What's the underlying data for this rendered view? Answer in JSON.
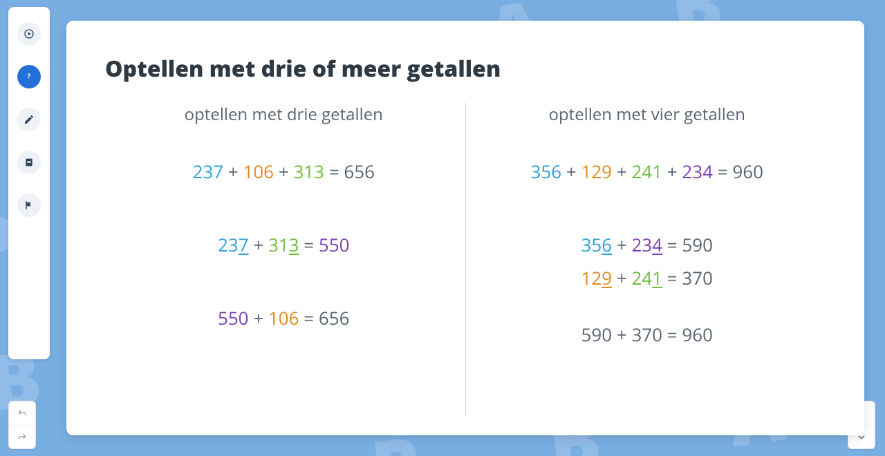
{
  "colors": {
    "text": "#5a6572",
    "heading": "#2e3944",
    "blue": "#2aa0de",
    "orange": "#e38b1f",
    "green": "#6cbf3c",
    "purple": "#7b3fb5",
    "bg": "#79aee3",
    "card": "#ffffff",
    "divider": "#c9ced5",
    "sidebar_active": "#2370d6"
  },
  "title": "Optellen met drie of meer getallen",
  "left": {
    "subhead": "optellen met drie getallen",
    "eq1": [
      {
        "t": "237",
        "c": "blue"
      },
      {
        "t": " + ",
        "c": "text"
      },
      {
        "t": "106",
        "c": "orange"
      },
      {
        "t": " + ",
        "c": "text"
      },
      {
        "t": "313",
        "c": "green"
      },
      {
        "t": " = 656",
        "c": "text"
      }
    ],
    "eq2": [
      {
        "t": "23",
        "c": "blue"
      },
      {
        "t": "7",
        "c": "blue",
        "u": true
      },
      {
        "t": " + ",
        "c": "text"
      },
      {
        "t": "31",
        "c": "green"
      },
      {
        "t": "3",
        "c": "green",
        "u": true
      },
      {
        "t": " = ",
        "c": "text"
      },
      {
        "t": "550",
        "c": "purple"
      }
    ],
    "eq3": [
      {
        "t": "550",
        "c": "purple"
      },
      {
        "t": " + ",
        "c": "text"
      },
      {
        "t": "106",
        "c": "orange"
      },
      {
        "t": " = 656",
        "c": "text"
      }
    ]
  },
  "right": {
    "subhead": "optellen met vier getallen",
    "eq1": [
      {
        "t": "356",
        "c": "blue"
      },
      {
        "t": " + ",
        "c": "text"
      },
      {
        "t": "129",
        "c": "orange"
      },
      {
        "t": " + ",
        "c": "text"
      },
      {
        "t": "241",
        "c": "green"
      },
      {
        "t": " + ",
        "c": "text"
      },
      {
        "t": "234",
        "c": "purple"
      },
      {
        "t": " = 960",
        "c": "text"
      }
    ],
    "eq2": [
      {
        "t": "35",
        "c": "blue"
      },
      {
        "t": "6",
        "c": "blue",
        "u": true
      },
      {
        "t": " + ",
        "c": "text"
      },
      {
        "t": "23",
        "c": "purple"
      },
      {
        "t": "4",
        "c": "purple",
        "u": true
      },
      {
        "t": " = 590",
        "c": "text"
      }
    ],
    "eq3": [
      {
        "t": "12",
        "c": "orange"
      },
      {
        "t": "9",
        "c": "orange",
        "u": true
      },
      {
        "t": " + ",
        "c": "text"
      },
      {
        "t": "24",
        "c": "green"
      },
      {
        "t": "1",
        "c": "green",
        "u": true
      },
      {
        "t": " = 370",
        "c": "text"
      }
    ],
    "eq4": [
      {
        "t": "590 + 370 = 960",
        "c": "text"
      }
    ]
  },
  "sidebar": {
    "items": [
      {
        "name": "play-icon",
        "active": false
      },
      {
        "name": "help-icon",
        "active": true
      },
      {
        "name": "edit-icon",
        "active": false
      },
      {
        "name": "notes-icon",
        "active": false
      },
      {
        "name": "flag-icon",
        "active": false
      }
    ]
  }
}
